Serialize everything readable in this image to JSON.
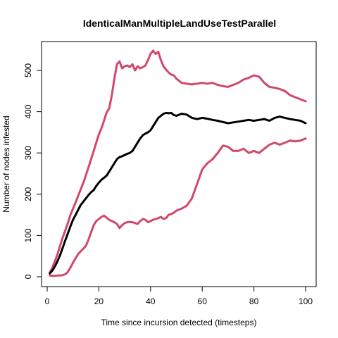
{
  "chart_data": {
    "type": "line",
    "title": "IdenticalManMultipleLandUseTestParallel",
    "xlabel": "Time since incursion detected (timesteps)",
    "ylabel": "Number of nodes infested",
    "xlim": [
      0,
      100
    ],
    "ylim": [
      0,
      550
    ],
    "xticks": [
      0,
      20,
      40,
      60,
      80,
      100
    ],
    "yticks": [
      0,
      100,
      200,
      300,
      400,
      500
    ],
    "grid": false,
    "legend": "none",
    "series": [
      {
        "role": "upper",
        "color": "#D1486A",
        "x": [
          1,
          2,
          3,
          4,
          5,
          6,
          7,
          8,
          9,
          10,
          11,
          12,
          13,
          14,
          15,
          16,
          17,
          18,
          19,
          20,
          21,
          22,
          23,
          24,
          25,
          26,
          27,
          28,
          29,
          30,
          31,
          32,
          33,
          34,
          35,
          36,
          37,
          38,
          39,
          40,
          41,
          42,
          43,
          44,
          45,
          46,
          47,
          48,
          49,
          50,
          52,
          54,
          56,
          58,
          60,
          62,
          64,
          66,
          68,
          70,
          72,
          74,
          76,
          78,
          80,
          82,
          84,
          86,
          88,
          90,
          92,
          94,
          96,
          98,
          100
        ],
        "y": [
          10,
          22,
          38,
          55,
          75,
          95,
          112,
          130,
          150,
          165,
          180,
          196,
          212,
          228,
          246,
          265,
          285,
          305,
          325,
          345,
          360,
          378,
          398,
          408,
          440,
          480,
          515,
          522,
          505,
          510,
          512,
          508,
          515,
          500,
          510,
          505,
          508,
          512,
          525,
          540,
          548,
          540,
          545,
          525,
          510,
          502,
          495,
          490,
          488,
          480,
          470,
          468,
          466,
          468,
          470,
          468,
          470,
          465,
          462,
          460,
          465,
          470,
          478,
          482,
          488,
          485,
          470,
          460,
          458,
          455,
          450,
          440,
          435,
          430,
          425
        ]
      },
      {
        "role": "lower",
        "color": "#D1486A",
        "x": [
          1,
          2,
          3,
          4,
          5,
          6,
          7,
          8,
          9,
          10,
          11,
          12,
          13,
          14,
          15,
          16,
          17,
          18,
          19,
          20,
          21,
          22,
          23,
          24,
          25,
          26,
          27,
          28,
          29,
          30,
          31,
          32,
          33,
          34,
          35,
          36,
          37,
          38,
          39,
          40,
          41,
          42,
          43,
          44,
          45,
          46,
          47,
          48,
          49,
          50,
          52,
          54,
          56,
          58,
          60,
          62,
          64,
          66,
          68,
          70,
          72,
          74,
          76,
          78,
          80,
          82,
          84,
          86,
          88,
          90,
          92,
          94,
          96,
          98,
          100
        ],
        "y": [
          3,
          2,
          2,
          3,
          3,
          4,
          6,
          12,
          22,
          34,
          45,
          55,
          62,
          68,
          75,
          90,
          108,
          125,
          135,
          140,
          145,
          148,
          143,
          138,
          135,
          132,
          128,
          118,
          125,
          130,
          132,
          133,
          132,
          130,
          128,
          135,
          140,
          138,
          132,
          135,
          138,
          140,
          142,
          145,
          140,
          142,
          150,
          152,
          155,
          160,
          165,
          172,
          190,
          225,
          260,
          275,
          285,
          300,
          318,
          315,
          305,
          305,
          310,
          300,
          305,
          300,
          310,
          320,
          325,
          320,
          325,
          330,
          328,
          330,
          335
        ]
      },
      {
        "role": "mean",
        "color": "#000000",
        "x": [
          1,
          2,
          3,
          4,
          5,
          6,
          7,
          8,
          9,
          10,
          11,
          12,
          13,
          14,
          15,
          16,
          17,
          18,
          19,
          20,
          21,
          22,
          23,
          24,
          25,
          26,
          27,
          28,
          29,
          30,
          31,
          32,
          33,
          34,
          35,
          36,
          37,
          38,
          39,
          40,
          41,
          42,
          43,
          44,
          45,
          46,
          47,
          48,
          49,
          50,
          52,
          54,
          56,
          58,
          60,
          62,
          64,
          66,
          68,
          70,
          72,
          74,
          76,
          78,
          80,
          82,
          84,
          86,
          88,
          90,
          92,
          94,
          96,
          98,
          100
        ],
        "y": [
          8,
          15,
          25,
          38,
          52,
          70,
          88,
          105,
          122,
          138,
          150,
          162,
          174,
          182,
          190,
          198,
          205,
          210,
          220,
          228,
          235,
          240,
          245,
          255,
          265,
          275,
          285,
          290,
          292,
          295,
          298,
          300,
          305,
          315,
          325,
          335,
          343,
          347,
          350,
          355,
          365,
          375,
          385,
          390,
          395,
          397,
          396,
          397,
          392,
          390,
          395,
          393,
          385,
          382,
          385,
          383,
          380,
          378,
          375,
          372,
          374,
          376,
          378,
          380,
          378,
          380,
          382,
          378,
          385,
          388,
          385,
          382,
          380,
          378,
          372
        ]
      }
    ]
  }
}
